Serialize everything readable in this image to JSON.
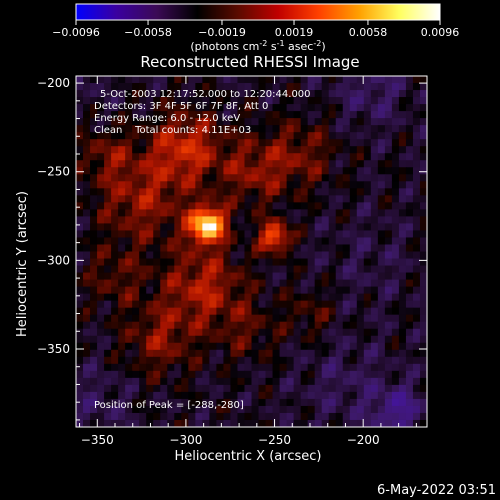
{
  "footer": {
    "timestamp": "6-May-2022 03:51"
  },
  "colorbar": {
    "colors": [
      "#0000ff",
      "#3a00a0",
      "#3b0a55",
      "#000000",
      "#5a0a00",
      "#c00000",
      "#ff4000",
      "#ffa000",
      "#ffff60",
      "#ffffff"
    ],
    "tick_labels": [
      "-0.0096",
      "-0.0058",
      "-0.0019",
      "0.0019",
      "0.0058",
      "0.0096"
    ],
    "unit_parts": [
      "(photons cm",
      "-2",
      " s",
      "-1",
      " asec",
      "-2",
      ")"
    ]
  },
  "chart_data": {
    "type": "heatmap",
    "title": "Reconstructed RHESSI Image",
    "xlabel": "Heliocentric X (arcsec)",
    "ylabel": "Heliocentric Y (arcsec)",
    "xlim": [
      -362,
      -164
    ],
    "ylim": [
      -394,
      -196
    ],
    "x_ticks": [
      -350,
      -300,
      -250,
      -200
    ],
    "y_ticks": [
      -200,
      -250,
      -300,
      -350
    ],
    "x_tick_labels": [
      "−350",
      "−300",
      "−250",
      "−200"
    ],
    "y_tick_labels": [
      "−200",
      "−250",
      "−300",
      "−350"
    ],
    "info_lines": [
      "5-Oct-2003 12:17:52.000 to 12:20:44.000",
      "Detectors: 3F 4F 5F 6F 7F 8F, Att 0",
      "Energy Range: 6.0 - 12.0 keV",
      "Clean    Total counts: 4.11E+03"
    ],
    "peak_label": "Position of Peak = [-288,-280]",
    "peak": {
      "x": -288,
      "y": -280
    },
    "grid": false,
    "sources": [
      {
        "x": -288,
        "y": -280,
        "value": 0.0096,
        "sigma": 7
      },
      {
        "x": -250,
        "y": -287,
        "value": 0.006,
        "sigma": 6
      },
      {
        "x": -300,
        "y": -236,
        "value": 0.004,
        "sigma": 14
      },
      {
        "x": -325,
        "y": -265,
        "value": 0.003,
        "sigma": 18
      },
      {
        "x": -290,
        "y": -315,
        "value": 0.0035,
        "sigma": 16
      },
      {
        "x": -315,
        "y": -345,
        "value": 0.0026,
        "sigma": 14
      },
      {
        "x": -262,
        "y": -250,
        "value": 0.0026,
        "sigma": 14
      },
      {
        "x": -235,
        "y": -240,
        "value": 0.0022,
        "sigma": 14
      },
      {
        "x": -230,
        "y": -330,
        "value": 0.0016,
        "sigma": 10
      },
      {
        "x": -345,
        "y": -240,
        "value": 0.002,
        "sigma": 10
      },
      {
        "x": -340,
        "y": -310,
        "value": 0.0018,
        "sigma": 12
      },
      {
        "x": -265,
        "y": -340,
        "value": 0.0016,
        "sigma": 12
      },
      {
        "x": -195,
        "y": -205,
        "value": -0.0016,
        "sigma": 14
      },
      {
        "x": -180,
        "y": -385,
        "value": -0.003,
        "sigma": 10
      },
      {
        "x": -210,
        "y": -370,
        "value": -0.0012,
        "sigma": 18
      },
      {
        "x": -350,
        "y": -380,
        "value": -0.0012,
        "sigma": 14
      },
      {
        "x": -195,
        "y": -300,
        "value": -0.0008,
        "sigma": 18
      },
      {
        "x": -355,
        "y": -200,
        "value": -0.0008,
        "sigma": 10
      }
    ]
  }
}
